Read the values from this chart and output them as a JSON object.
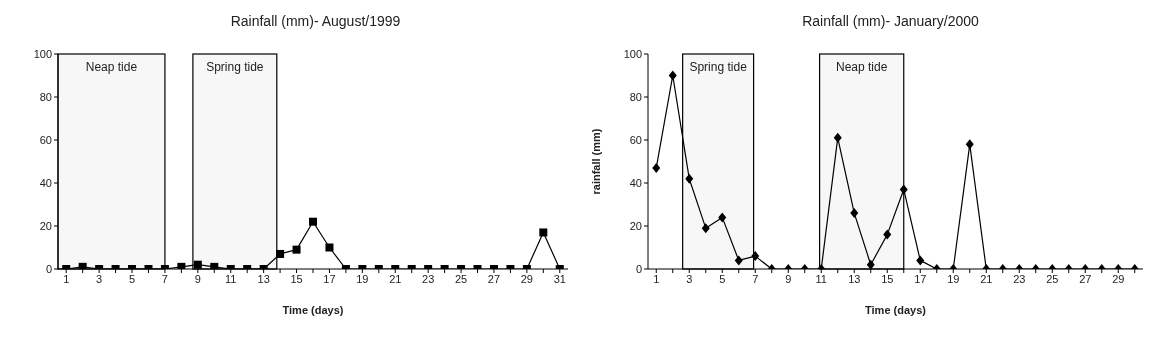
{
  "chart_data": [
    {
      "type": "line",
      "title": "Rainfall (mm)- August/1999",
      "xlabel": "Time (days)",
      "x": [
        1,
        2,
        3,
        4,
        5,
        6,
        7,
        8,
        9,
        10,
        11,
        12,
        13,
        14,
        15,
        16,
        17,
        18,
        19,
        20,
        21,
        22,
        23,
        24,
        25,
        26,
        27,
        28,
        29,
        30,
        31
      ],
      "series": [
        {
          "color": "#000000",
          "values": [
            0,
            1,
            0,
            0,
            0,
            0,
            0,
            1,
            2,
            1,
            0,
            0,
            0,
            7,
            9,
            22,
            10,
            0,
            0,
            0,
            0,
            0,
            0,
            0,
            0,
            0,
            0,
            0,
            0,
            17,
            0
          ]
        }
      ],
      "xlim": [
        0.5,
        31.5
      ],
      "xticks": [
        1,
        {
          "value": 2,
          "label": null
        },
        3,
        {
          "value": 4,
          "label": null
        },
        5,
        {
          "value": 6,
          "label": null
        },
        7,
        {
          "value": 8,
          "label": null
        },
        9,
        {
          "value": 10,
          "label": null
        },
        11,
        {
          "value": 12,
          "label": null
        },
        13,
        {
          "value": 14,
          "label": null
        },
        15,
        {
          "value": 16,
          "label": null
        },
        17,
        {
          "value": 18,
          "label": null
        },
        19,
        {
          "value": 20,
          "label": null
        },
        21,
        {
          "value": 22,
          "label": null
        },
        23,
        {
          "value": 24,
          "label": null
        },
        25,
        {
          "value": 26,
          "label": null
        },
        27,
        {
          "value": 28,
          "label": null
        },
        29,
        {
          "value": 30,
          "label": null
        },
        31
      ],
      "ylim": [
        0,
        100
      ],
      "yticks": [
        0,
        20,
        40,
        60,
        80,
        100
      ],
      "bands": [
        {
          "axis": "x",
          "from": 0.5,
          "to": 7,
          "label": "Neap tide",
          "color": "#f7f7f7"
        },
        {
          "axis": "x",
          "from": 8.7,
          "to": 13.8,
          "label": "Spring tide",
          "color": "#f7f7f7"
        }
      ],
      "marker": "square",
      "grid": false,
      "legend": false
    },
    {
      "type": "line",
      "title": "Rainfall (mm)- January/2000",
      "xlabel": "Time (days)",
      "ylabel": "rainfall (mm)",
      "x": [
        1,
        2,
        3,
        4,
        5,
        6,
        7,
        8,
        9,
        10,
        11,
        12,
        13,
        14,
        15,
        16,
        17,
        18,
        19,
        20,
        21,
        22,
        23,
        24,
        25,
        26,
        27,
        28,
        29,
        30
      ],
      "series": [
        {
          "color": "#000000",
          "values": [
            47,
            90,
            42,
            19,
            24,
            4,
            6,
            0,
            0,
            0,
            0,
            61,
            26,
            2,
            16,
            37,
            4,
            0,
            0,
            58,
            0,
            0,
            0,
            0,
            0,
            0,
            0,
            0,
            0,
            0
          ]
        }
      ],
      "xlim": [
        0.5,
        30.5
      ],
      "xticks": [
        1,
        {
          "value": 2,
          "label": null
        },
        3,
        {
          "value": 4,
          "label": null
        },
        5,
        {
          "value": 6,
          "label": null
        },
        7,
        {
          "value": 8,
          "label": null
        },
        9,
        {
          "value": 10,
          "label": null
        },
        11,
        {
          "value": 12,
          "label": null
        },
        13,
        {
          "value": 14,
          "label": null
        },
        15,
        {
          "value": 16,
          "label": null
        },
        17,
        {
          "value": 18,
          "label": null
        },
        19,
        {
          "value": 20,
          "label": null
        },
        21,
        {
          "value": 22,
          "label": null
        },
        23,
        {
          "value": 24,
          "label": null
        },
        25,
        {
          "value": 26,
          "label": null
        },
        27,
        {
          "value": 28,
          "label": null
        },
        29,
        {
          "value": 30,
          "label": null
        }
      ],
      "ylim": [
        0,
        100
      ],
      "yticks": [
        0,
        20,
        40,
        60,
        80,
        100
      ],
      "bands": [
        {
          "axis": "x",
          "from": 2.6,
          "to": 6.9,
          "label": "Spring tide",
          "color": "#f7f7f7"
        },
        {
          "axis": "x",
          "from": 10.9,
          "to": 16,
          "label": "Neap tide",
          "color": "#f7f7f7"
        }
      ],
      "marker": "diamond",
      "grid": false,
      "legend": false
    }
  ]
}
